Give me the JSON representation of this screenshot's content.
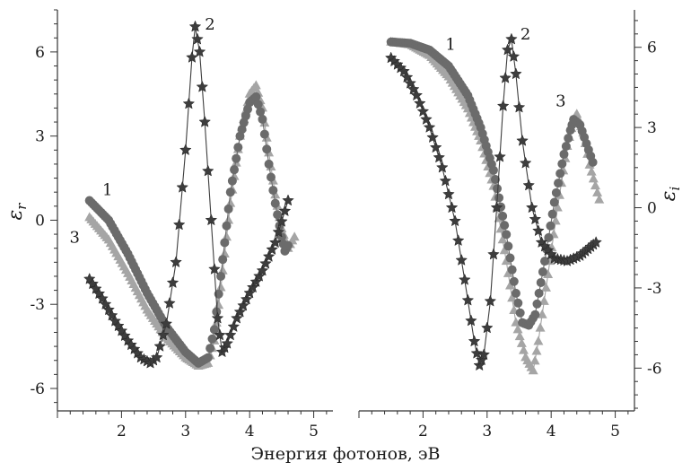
{
  "chart_data": {
    "type": "scatter",
    "xlabel": "Энергия фотонов, эВ",
    "panels": [
      {
        "id": "left",
        "ylabel": "ε_r",
        "ylabel_main": "ε",
        "ylabel_sub": "r",
        "xlim": [
          1.0,
          5.3
        ],
        "ylim": [
          -6.8,
          7.5
        ],
        "xticks": [
          2,
          3,
          4,
          5
        ],
        "xtick_labels": [
          "2",
          "3",
          "4",
          "5"
        ],
        "yticks": [
          6,
          3,
          0,
          -3,
          -6
        ],
        "ytick_labels": [
          "6",
          "3",
          "0",
          "-3",
          "-6"
        ],
        "yaxis_side": "left",
        "series": [
          {
            "curve": "1",
            "marker": "circle",
            "color": "#6b6b6b",
            "points": [
              [
                1.5,
                0.7
              ],
              [
                1.8,
                0.0
              ],
              [
                2.1,
                -1.2
              ],
              [
                2.4,
                -2.6
              ],
              [
                2.7,
                -3.8
              ],
              [
                3.0,
                -4.7
              ],
              [
                3.2,
                -5.1
              ],
              [
                3.35,
                -4.9
              ],
              [
                3.45,
                -3.9
              ],
              [
                3.55,
                -2.0
              ],
              [
                3.7,
                1.0
              ],
              [
                3.85,
                3.0
              ],
              [
                4.0,
                4.2
              ],
              [
                4.1,
                4.4
              ],
              [
                4.2,
                3.6
              ],
              [
                4.3,
                2.0
              ],
              [
                4.4,
                0.6
              ],
              [
                4.5,
                -0.6
              ],
              [
                4.55,
                -1.1
              ],
              [
                4.6,
                -0.9
              ]
            ]
          },
          {
            "curve": "2",
            "marker": "star",
            "color": "#3d3d3d",
            "points": [
              [
                1.5,
                -2.1
              ],
              [
                1.7,
                -2.8
              ],
              [
                1.9,
                -3.6
              ],
              [
                2.1,
                -4.3
              ],
              [
                2.3,
                -4.9
              ],
              [
                2.45,
                -5.1
              ],
              [
                2.55,
                -4.9
              ],
              [
                2.7,
                -3.7
              ],
              [
                2.85,
                -1.5
              ],
              [
                3.0,
                2.5
              ],
              [
                3.1,
                5.8
              ],
              [
                3.15,
                6.9
              ],
              [
                3.22,
                6.0
              ],
              [
                3.3,
                3.5
              ],
              [
                3.4,
                0.0
              ],
              [
                3.5,
                -3.5
              ],
              [
                3.57,
                -4.7
              ],
              [
                3.65,
                -4.4
              ],
              [
                3.8,
                -3.5
              ],
              [
                4.0,
                -2.6
              ],
              [
                4.2,
                -1.8
              ],
              [
                4.4,
                -0.8
              ],
              [
                4.6,
                0.7
              ]
            ]
          },
          {
            "curve": "3",
            "marker": "triangle",
            "color": "#a5a5a5",
            "points": [
              [
                1.5,
                0.1
              ],
              [
                1.8,
                -0.7
              ],
              [
                2.1,
                -1.9
              ],
              [
                2.4,
                -3.2
              ],
              [
                2.7,
                -4.2
              ],
              [
                3.0,
                -4.9
              ],
              [
                3.2,
                -5.2
              ],
              [
                3.35,
                -5.1
              ],
              [
                3.45,
                -4.3
              ],
              [
                3.55,
                -2.4
              ],
              [
                3.7,
                0.6
              ],
              [
                3.85,
                3.0
              ],
              [
                4.0,
                4.5
              ],
              [
                4.1,
                4.8
              ],
              [
                4.2,
                4.0
              ],
              [
                4.3,
                2.4
              ],
              [
                4.4,
                0.9
              ],
              [
                4.5,
                -0.3
              ],
              [
                4.6,
                -1.0
              ],
              [
                4.7,
                -0.6
              ]
            ]
          }
        ],
        "curve_labels": [
          {
            "text": "1",
            "x": 1.78,
            "y": 0.9
          },
          {
            "text": "2",
            "x": 3.38,
            "y": 6.8
          },
          {
            "text": "3",
            "x": 1.27,
            "y": -0.8
          }
        ]
      },
      {
        "id": "right",
        "ylabel": "ε_i",
        "ylabel_main": "ε",
        "ylabel_sub": "i",
        "xlim": [
          1.0,
          5.3
        ],
        "ylim": [
          -7.6,
          7.4
        ],
        "xticks": [
          2,
          3,
          4,
          5
        ],
        "xtick_labels": [
          "2",
          "3",
          "4",
          "5"
        ],
        "yticks": [
          6,
          3,
          0,
          -3,
          -6
        ],
        "ytick_labels": [
          "6",
          "3",
          "0",
          "-3",
          "-6"
        ],
        "yaxis_side": "right",
        "series": [
          {
            "curve": "1",
            "marker": "circle",
            "color": "#6b6b6b",
            "points": [
              [
                1.5,
                6.2
              ],
              [
                1.8,
                6.15
              ],
              [
                2.1,
                5.9
              ],
              [
                2.4,
                5.3
              ],
              [
                2.7,
                4.2
              ],
              [
                2.9,
                3.0
              ],
              [
                3.1,
                1.4
              ],
              [
                3.3,
                -1.0
              ],
              [
                3.45,
                -3.2
              ],
              [
                3.55,
                -4.3
              ],
              [
                3.65,
                -4.4
              ],
              [
                3.75,
                -4.0
              ],
              [
                3.9,
                -2.0
              ],
              [
                4.05,
                0.2
              ],
              [
                4.2,
                2.0
              ],
              [
                4.3,
                2.9
              ],
              [
                4.35,
                3.3
              ],
              [
                4.45,
                3.1
              ],
              [
                4.55,
                2.4
              ],
              [
                4.65,
                1.7
              ]
            ]
          },
          {
            "curve": "2",
            "marker": "star",
            "color": "#3d3d3d",
            "points": [
              [
                1.5,
                5.6
              ],
              [
                1.7,
                5.1
              ],
              [
                1.9,
                4.2
              ],
              [
                2.1,
                3.0
              ],
              [
                2.3,
                1.5
              ],
              [
                2.5,
                -0.5
              ],
              [
                2.65,
                -2.7
              ],
              [
                2.8,
                -5.0
              ],
              [
                2.88,
                -5.9
              ],
              [
                2.95,
                -5.5
              ],
              [
                3.05,
                -3.5
              ],
              [
                3.15,
                0.0
              ],
              [
                3.25,
                3.8
              ],
              [
                3.32,
                5.9
              ],
              [
                3.38,
                6.3
              ],
              [
                3.45,
                5.0
              ],
              [
                3.55,
                2.5
              ],
              [
                3.7,
                0.0
              ],
              [
                3.85,
                -1.3
              ],
              [
                4.05,
                -1.9
              ],
              [
                4.25,
                -2.0
              ],
              [
                4.45,
                -1.8
              ],
              [
                4.7,
                -1.3
              ]
            ]
          },
          {
            "curve": "3",
            "marker": "triangle",
            "color": "#a5a5a5",
            "points": [
              [
                1.5,
                6.2
              ],
              [
                1.8,
                6.1
              ],
              [
                2.1,
                5.7
              ],
              [
                2.4,
                4.9
              ],
              [
                2.7,
                3.7
              ],
              [
                2.9,
                2.5
              ],
              [
                3.1,
                0.8
              ],
              [
                3.3,
                -2.0
              ],
              [
                3.45,
                -4.3
              ],
              [
                3.6,
                -5.6
              ],
              [
                3.72,
                -6.1
              ],
              [
                3.8,
                -5.0
              ],
              [
                3.95,
                -2.5
              ],
              [
                4.1,
                0.0
              ],
              [
                4.25,
                2.3
              ],
              [
                4.35,
                3.3
              ],
              [
                4.4,
                3.5
              ],
              [
                4.5,
                2.8
              ],
              [
                4.6,
                1.6
              ],
              [
                4.75,
                0.3
              ]
            ]
          }
        ],
        "curve_labels": [
          {
            "text": "1",
            "x": 2.43,
            "y": 5.9
          },
          {
            "text": "2",
            "x": 3.6,
            "y": 6.3
          },
          {
            "text": "3",
            "x": 4.15,
            "y": 3.8
          }
        ]
      }
    ]
  }
}
